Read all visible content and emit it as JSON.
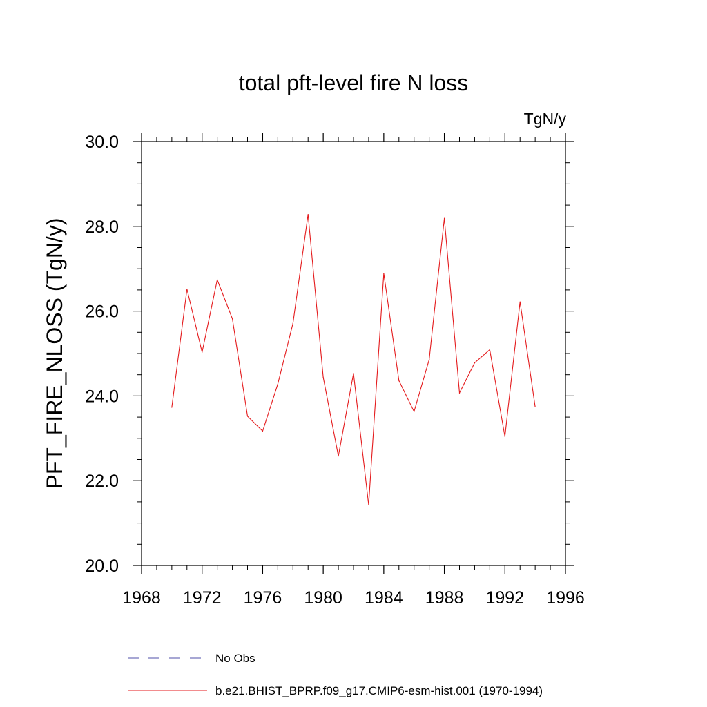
{
  "chart_data": {
    "type": "line",
    "title": "total pft-level fire N loss",
    "units_label": "TgN/y",
    "ylabel": "PFT_FIRE_NLOSS  (TgN/y)",
    "xlabel": "",
    "xlim": [
      1968,
      1996
    ],
    "ylim": [
      20.0,
      30.0
    ],
    "x_ticks": [
      "1968",
      "1972",
      "1976",
      "1980",
      "1984",
      "1988",
      "1992",
      "1996"
    ],
    "y_ticks": [
      "20.0",
      "22.0",
      "24.0",
      "26.0",
      "28.0",
      "30.0"
    ],
    "grid": false,
    "legend_position": "bottom",
    "series": [
      {
        "name": "b.e21.BHIST_BPRP.f09_g17.CMIP6-esm-hist.001 (1970-1994)",
        "color": "#e41a1c",
        "x": [
          1970,
          1971,
          1972,
          1973,
          1974,
          1975,
          1976,
          1977,
          1978,
          1979,
          1980,
          1981,
          1982,
          1983,
          1984,
          1985,
          1986,
          1987,
          1988,
          1989,
          1990,
          1991,
          1992,
          1993,
          1994
        ],
        "values": [
          23.73,
          26.52,
          25.03,
          26.74,
          25.82,
          23.52,
          23.17,
          24.28,
          25.71,
          28.28,
          24.44,
          22.58,
          24.53,
          21.43,
          26.89,
          24.36,
          23.63,
          24.86,
          28.19,
          24.07,
          24.78,
          25.09,
          23.04,
          26.22,
          23.74
        ]
      }
    ],
    "legend": [
      {
        "label": "No Obs",
        "color": "#4f4fa8",
        "dash": true
      },
      {
        "label": "b.e21.BHIST_BPRP.f09_g17.CMIP6-esm-hist.001 (1970-1994)",
        "color": "#e41a1c",
        "dash": false
      }
    ]
  }
}
